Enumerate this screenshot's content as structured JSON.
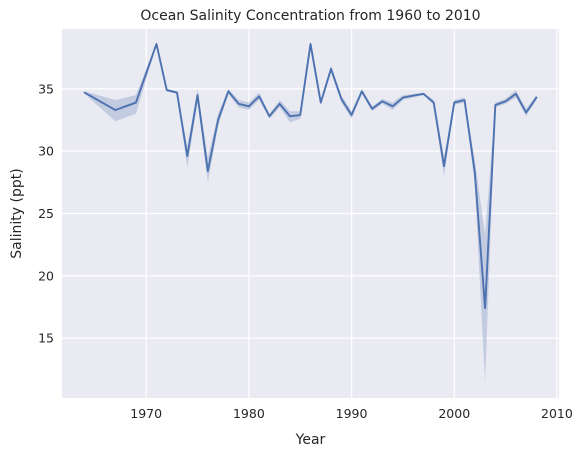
{
  "chart_data": {
    "type": "line",
    "title": "Ocean Salinity Concentration from 1960 to 2010",
    "xlabel": "Year",
    "ylabel": "Salinity (ppt)",
    "xlim": [
      1961.8,
      2010.2
    ],
    "ylim": [
      10.2,
      39.8
    ],
    "xticks": [
      1970,
      1980,
      1990,
      2000,
      2010
    ],
    "yticks": [
      15,
      20,
      25,
      30,
      35
    ],
    "grid": true,
    "legend": "none",
    "colors": {
      "background": "#eaeaf2",
      "line": "#4c72b0",
      "band": "#a8b5d6",
      "grid": "#ffffff"
    },
    "series": [
      {
        "x": [
          1964,
          1967,
          1969,
          1971,
          1972,
          1973,
          1974,
          1975,
          1976,
          1977,
          1978,
          1979,
          1980,
          1981,
          1982,
          1983,
          1984,
          1985,
          1986,
          1987,
          1988,
          1989,
          1990,
          1991,
          1992,
          1993,
          1994,
          1995,
          1997,
          1998,
          1999,
          2000,
          2001,
          2002,
          2003,
          2004,
          2005,
          2006,
          2007,
          2008
        ],
        "y": [
          34.7,
          33.3,
          33.9,
          38.6,
          34.9,
          34.7,
          29.6,
          34.5,
          28.4,
          32.5,
          34.8,
          33.8,
          33.6,
          34.4,
          32.8,
          33.8,
          32.8,
          32.9,
          38.6,
          33.9,
          36.6,
          34.2,
          32.9,
          34.8,
          33.4,
          34.0,
          33.6,
          34.3,
          34.6,
          33.9,
          28.8,
          33.9,
          34.1,
          28.3,
          17.4,
          33.7,
          34.0,
          34.6,
          33.1,
          34.3
        ],
        "ci_low": [
          34.6,
          32.4,
          33.0,
          38.5,
          34.8,
          34.6,
          28.7,
          34.0,
          27.5,
          32.0,
          34.6,
          33.5,
          33.3,
          34.1,
          32.6,
          33.5,
          32.3,
          32.6,
          38.5,
          33.7,
          36.3,
          33.9,
          32.6,
          34.6,
          33.2,
          33.8,
          33.3,
          34.1,
          34.5,
          33.7,
          28.0,
          33.7,
          33.9,
          27.3,
          11.5,
          33.5,
          33.8,
          34.3,
          32.8,
          34.1
        ],
        "ci_high": [
          34.8,
          34.1,
          34.5,
          38.7,
          35.0,
          34.8,
          30.4,
          35.0,
          29.5,
          33.0,
          35.0,
          34.1,
          33.9,
          34.7,
          33.0,
          34.1,
          33.2,
          33.2,
          38.7,
          34.1,
          36.9,
          34.5,
          33.2,
          35.0,
          33.6,
          34.2,
          33.9,
          34.5,
          34.7,
          34.1,
          29.6,
          34.1,
          34.3,
          29.3,
          23.3,
          33.9,
          34.2,
          34.9,
          33.4,
          34.5
        ]
      }
    ]
  }
}
